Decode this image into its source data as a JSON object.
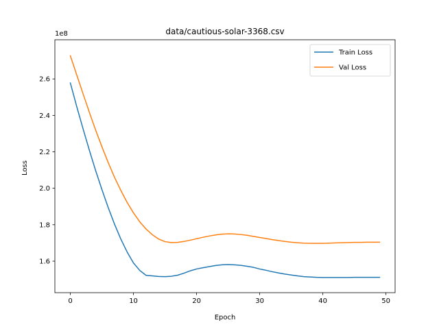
{
  "chart_data": {
    "type": "line",
    "title": "data/cautious-solar-3368.csv",
    "xlabel": "Epoch",
    "ylabel": "Loss",
    "y_offset_label": "1e8",
    "y_scale": 100000000,
    "xlim": [
      -2.45,
      51.45
    ],
    "ylim": [
      142700000,
      281500000
    ],
    "x_ticks": [
      0,
      10,
      20,
      30,
      40,
      50
    ],
    "y_ticks": [
      160000000,
      180000000,
      200000000,
      220000000,
      240000000,
      260000000
    ],
    "y_tick_labels": [
      "1.6",
      "1.8",
      "2.0",
      "2.2",
      "2.4",
      "2.6"
    ],
    "legend_position": "top-right",
    "grid": false,
    "series": [
      {
        "name": "Train Loss",
        "color": "#1f77b4",
        "values": [
          257800000,
          245000000,
          232800000,
          221000000,
          209800000,
          199300000,
          189400000,
          180300000,
          172100000,
          165000000,
          159000000,
          154900000,
          152200000,
          151900000,
          151600000,
          151500000,
          151700000,
          152300000,
          153400000,
          154700000,
          155700000,
          156400000,
          157000000,
          157600000,
          158000000,
          158100000,
          158000000,
          157700000,
          157200000,
          156600000,
          155700000,
          155000000,
          154200000,
          153500000,
          152900000,
          152400000,
          151900000,
          151500000,
          151300000,
          151100000,
          151000000,
          151000000,
          151000000,
          151000000,
          151000000,
          151100000,
          151100000,
          151100000,
          151100000,
          151100000
        ]
      },
      {
        "name": "Val Loss",
        "color": "#ff7f0e",
        "values": [
          272700000,
          262300000,
          252000000,
          241800000,
          232000000,
          222800000,
          214100000,
          206000000,
          198800000,
          192200000,
          186500000,
          181600000,
          177600000,
          174500000,
          172100000,
          170700000,
          170200000,
          170300000,
          170800000,
          171500000,
          172300000,
          173100000,
          173800000,
          174400000,
          174800000,
          175000000,
          174900000,
          174600000,
          174200000,
          173600000,
          173000000,
          172400000,
          171800000,
          171300000,
          170800000,
          170400000,
          170100000,
          169900000,
          169800000,
          169800000,
          169800000,
          169900000,
          170000000,
          170100000,
          170200000,
          170300000,
          170300000,
          170400000,
          170400000,
          170400000
        ]
      }
    ]
  }
}
